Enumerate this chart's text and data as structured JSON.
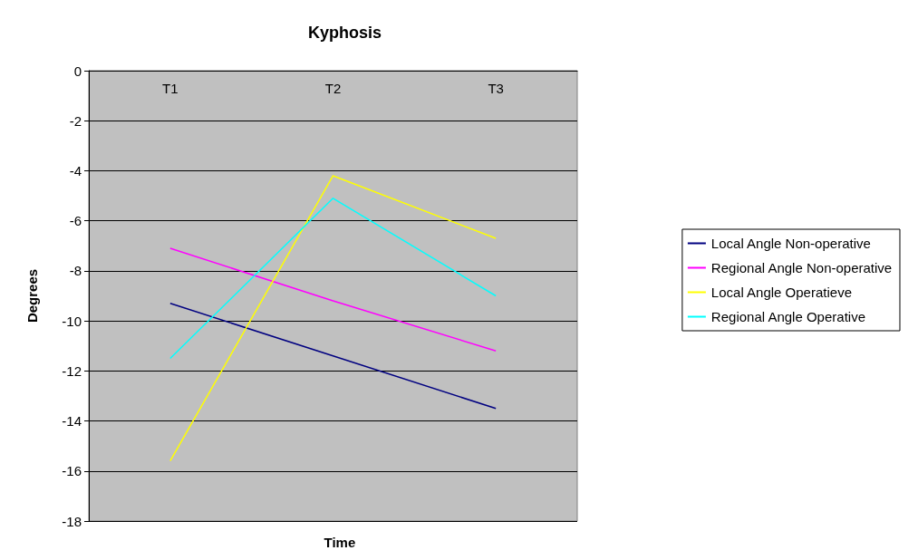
{
  "chart_data": {
    "type": "line",
    "title": "Kyphosis",
    "xlabel": "Time",
    "ylabel": "Degrees",
    "categories": [
      "T1",
      "T2",
      "T3"
    ],
    "series": [
      {
        "name": "Local Angle Non-operative",
        "color": "#000080",
        "values": [
          -9.3,
          -11.4,
          -13.5
        ]
      },
      {
        "name": "Regional Angle Non-operative",
        "color": "#ff00ff",
        "values": [
          -7.1,
          -9.2,
          -11.2
        ]
      },
      {
        "name": "Local Angle Operatieve",
        "color": "#ffff00",
        "values": [
          -15.6,
          -4.2,
          -6.7
        ]
      },
      {
        "name": "Regional Angle Operative",
        "color": "#00ffff",
        "values": [
          -11.5,
          -5.1,
          -9.0
        ]
      }
    ],
    "ylim": [
      -18,
      0
    ],
    "yticks": [
      -18,
      -16,
      -14,
      -12,
      -10,
      -8,
      -6,
      -4,
      -2,
      0
    ],
    "grid": "y",
    "legend": "right",
    "marker": "none",
    "line_style": "solid"
  }
}
